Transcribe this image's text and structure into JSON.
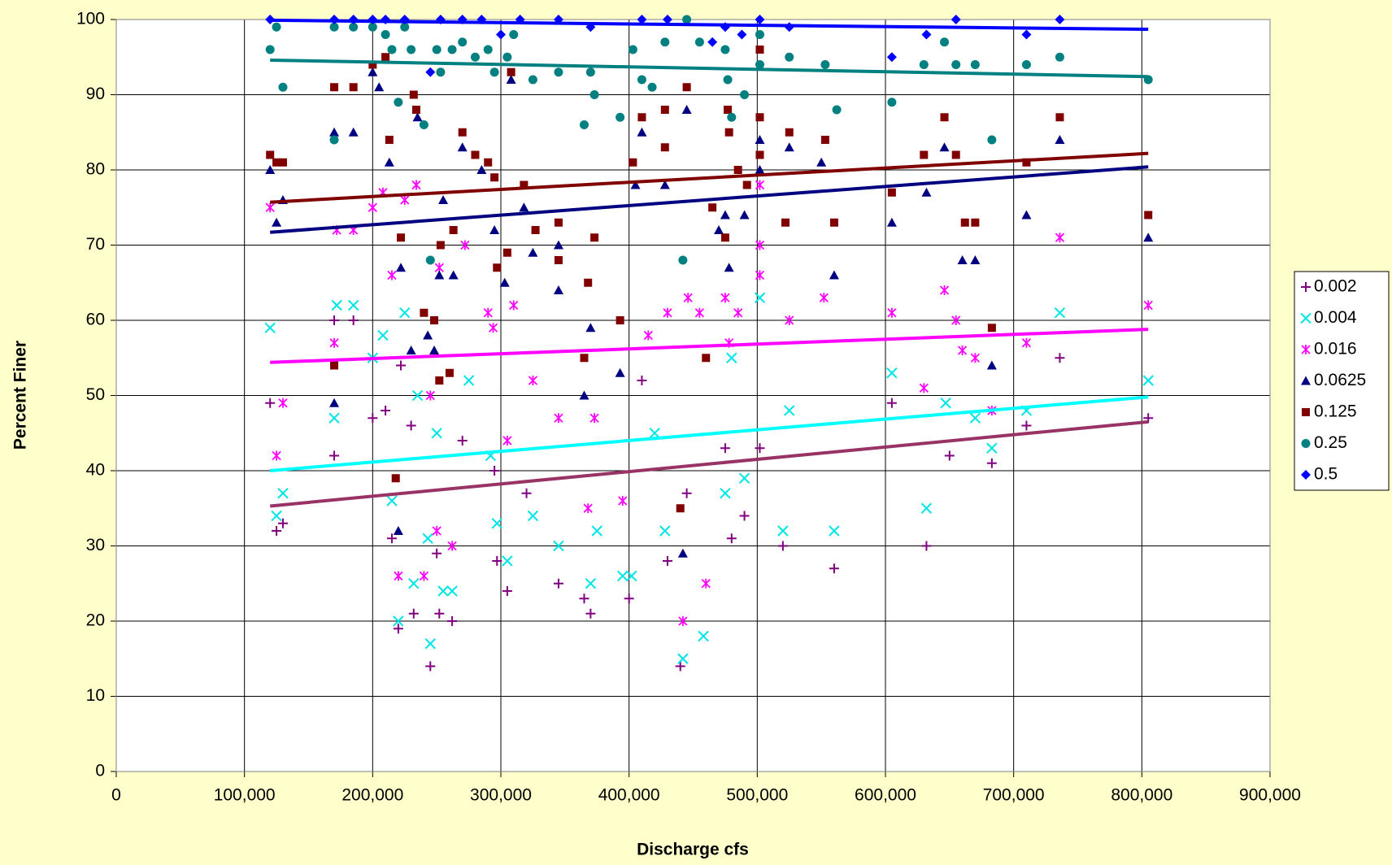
{
  "chart_data": {
    "type": "scatter",
    "y_label": "Percent Finer",
    "x_label": "Discharge  cfs",
    "xlim": [
      0,
      900000
    ],
    "ylim": [
      0,
      100
    ],
    "xticks": [
      0,
      {
        "value": 100000,
        "label": "100,000"
      },
      {
        "value": 200000,
        "label": "200,000"
      },
      {
        "value": 300000,
        "label": "300,000"
      },
      {
        "value": 400000,
        "label": "400,000"
      },
      {
        "value": 500000,
        "label": "500,000"
      },
      {
        "value": 600000,
        "label": "600,000"
      },
      {
        "value": 700000,
        "label": "700,000"
      },
      {
        "value": 800000,
        "label": "800,000"
      },
      {
        "value": 900000,
        "label": "900,000"
      }
    ],
    "yticks": [
      0,
      10,
      20,
      30,
      40,
      50,
      60,
      70,
      80,
      90,
      100
    ],
    "grid": true,
    "legend": "right",
    "trend_x": [
      120000,
      805000
    ],
    "series": [
      {
        "name": "0.002",
        "color": "#800080",
        "trend_color": "#993366",
        "marker": "plus",
        "trend": [
          35.3,
          46.5
        ],
        "x": [
          120000,
          125000,
          130000,
          170000,
          170000,
          185000,
          200000,
          210000,
          215000,
          220000,
          222000,
          230000,
          232000,
          245000,
          250000,
          252000,
          262000,
          270000,
          295000,
          297000,
          305000,
          320000,
          345000,
          365000,
          370000,
          400000,
          410000,
          430000,
          440000,
          445000,
          475000,
          480000,
          490000,
          502000,
          520000,
          560000,
          605000,
          632000,
          650000,
          683000,
          710000,
          736000,
          805000
        ],
        "values": [
          49,
          32,
          33,
          42,
          60,
          60,
          47,
          48,
          31,
          19,
          54,
          46,
          21,
          14,
          29,
          21,
          20,
          44,
          40,
          28,
          24,
          37,
          25,
          23,
          21,
          23,
          52,
          28,
          14,
          37,
          43,
          31,
          34,
          43,
          30,
          27,
          49,
          30,
          42,
          41,
          46,
          55,
          47
        ]
      },
      {
        "name": "0.004",
        "color": "#00e5e5",
        "trend_color": "#00ffff",
        "marker": "x",
        "trend": [
          40.0,
          49.8
        ],
        "x": [
          120000,
          125000,
          130000,
          170000,
          172000,
          185000,
          200000,
          208000,
          215000,
          220000,
          225000,
          232000,
          235000,
          243000,
          245000,
          250000,
          255000,
          262000,
          275000,
          292000,
          297000,
          305000,
          325000,
          345000,
          370000,
          375000,
          395000,
          402000,
          420000,
          428000,
          442000,
          458000,
          475000,
          480000,
          490000,
          502000,
          520000,
          525000,
          560000,
          605000,
          632000,
          647000,
          670000,
          683000,
          710000,
          736000,
          805000
        ],
        "values": [
          59,
          34,
          37,
          47,
          62,
          62,
          55,
          58,
          36,
          20,
          61,
          25,
          50,
          31,
          17,
          45,
          24,
          24,
          52,
          42,
          33,
          28,
          34,
          30,
          25,
          32,
          26,
          26,
          45,
          32,
          15,
          18,
          37,
          55,
          39,
          63,
          32,
          48,
          32,
          53,
          35,
          49,
          47,
          43,
          48,
          61,
          52
        ]
      },
      {
        "name": "0.016",
        "color": "#ff00ff",
        "trend_color": "#ff00ff",
        "marker": "asterisk",
        "trend": [
          54.4,
          58.8
        ],
        "x": [
          120000,
          125000,
          130000,
          170000,
          172000,
          185000,
          200000,
          208000,
          215000,
          220000,
          225000,
          234000,
          240000,
          245000,
          250000,
          252000,
          262000,
          272000,
          290000,
          294000,
          305000,
          310000,
          325000,
          345000,
          368000,
          373000,
          395000,
          415000,
          430000,
          442000,
          446000,
          455000,
          460000,
          475000,
          478000,
          485000,
          502000,
          502000,
          502000,
          525000,
          552000,
          605000,
          630000,
          646000,
          655000,
          660000,
          670000,
          683000,
          710000,
          736000,
          805000
        ],
        "values": [
          75,
          42,
          49,
          57,
          72,
          72,
          75,
          77,
          66,
          26,
          76,
          78,
          26,
          50,
          32,
          67,
          30,
          70,
          61,
          59,
          44,
          62,
          52,
          47,
          35,
          47,
          36,
          58,
          61,
          20,
          63,
          61,
          25,
          63,
          57,
          61,
          78,
          70,
          66,
          60,
          63,
          61,
          51,
          64,
          60,
          56,
          55,
          48,
          57,
          71,
          62
        ]
      },
      {
        "name": "0.0625",
        "color": "#000080",
        "trend_color": "#000080",
        "marker": "triangle",
        "trend": [
          71.7,
          80.4
        ],
        "x": [
          120000,
          125000,
          130000,
          170000,
          170000,
          185000,
          200000,
          205000,
          213000,
          220000,
          222000,
          230000,
          235000,
          243000,
          248000,
          252000,
          255000,
          263000,
          270000,
          285000,
          295000,
          303000,
          308000,
          318000,
          325000,
          345000,
          345000,
          365000,
          370000,
          393000,
          405000,
          410000,
          428000,
          442000,
          445000,
          470000,
          475000,
          478000,
          490000,
          502000,
          502000,
          525000,
          550000,
          560000,
          605000,
          632000,
          646000,
          660000,
          670000,
          683000,
          710000,
          736000,
          805000
        ],
        "values": [
          80,
          73,
          76,
          85,
          49,
          85,
          93,
          91,
          81,
          32,
          67,
          56,
          87,
          58,
          56,
          66,
          76,
          66,
          83,
          80,
          72,
          65,
          92,
          75,
          69,
          70,
          64,
          50,
          59,
          53,
          78,
          85,
          78,
          29,
          88,
          72,
          74,
          67,
          74,
          84,
          80,
          83,
          81,
          66,
          73,
          77,
          83,
          68,
          68,
          54,
          74,
          84,
          71
        ]
      },
      {
        "name": "0.125",
        "color": "#800000",
        "trend_color": "#800000",
        "marker": "square",
        "trend": [
          75.7,
          82.2
        ],
        "x": [
          120000,
          125000,
          130000,
          170000,
          170000,
          185000,
          200000,
          210000,
          213000,
          218000,
          222000,
          232000,
          234000,
          240000,
          248000,
          252000,
          253000,
          260000,
          263000,
          270000,
          280000,
          290000,
          295000,
          297000,
          305000,
          308000,
          318000,
          327000,
          345000,
          345000,
          365000,
          368000,
          373000,
          393000,
          403000,
          410000,
          428000,
          428000,
          440000,
          445000,
          460000,
          465000,
          475000,
          477000,
          478000,
          485000,
          492000,
          502000,
          502000,
          502000,
          522000,
          525000,
          553000,
          560000,
          605000,
          630000,
          646000,
          655000,
          662000,
          670000,
          683000,
          710000,
          736000,
          805000
        ],
        "values": [
          82,
          81,
          81,
          91,
          54,
          91,
          94,
          95,
          84,
          39,
          71,
          90,
          88,
          61,
          60,
          52,
          70,
          53,
          72,
          85,
          82,
          81,
          79,
          67,
          69,
          93,
          78,
          72,
          73,
          68,
          55,
          65,
          71,
          60,
          81,
          87,
          88,
          83,
          35,
          91,
          55,
          75,
          71,
          88,
          85,
          80,
          78,
          96,
          87,
          82,
          73,
          85,
          84,
          73,
          77,
          82,
          87,
          82,
          73,
          73,
          59,
          81,
          87,
          74
        ]
      },
      {
        "name": "0.25",
        "color": "#008080",
        "trend_color": "#008080",
        "marker": "circle",
        "trend": [
          94.6,
          92.4
        ],
        "x": [
          120000,
          125000,
          130000,
          170000,
          170000,
          185000,
          200000,
          210000,
          215000,
          220000,
          225000,
          230000,
          240000,
          245000,
          250000,
          253000,
          262000,
          270000,
          280000,
          290000,
          295000,
          305000,
          310000,
          325000,
          345000,
          365000,
          370000,
          373000,
          393000,
          403000,
          410000,
          418000,
          428000,
          442000,
          445000,
          455000,
          475000,
          477000,
          480000,
          490000,
          502000,
          502000,
          525000,
          553000,
          562000,
          605000,
          630000,
          646000,
          655000,
          670000,
          683000,
          710000,
          736000,
          805000
        ],
        "values": [
          96,
          99,
          91,
          84,
          99,
          99,
          99,
          98,
          96,
          89,
          99,
          96,
          86,
          68,
          96,
          93,
          96,
          97,
          95,
          96,
          93,
          95,
          98,
          92,
          93,
          86,
          93,
          90,
          87,
          96,
          92,
          91,
          97,
          68,
          100,
          97,
          96,
          92,
          87,
          90,
          98,
          94,
          95,
          94,
          88,
          89,
          94,
          97,
          94,
          94,
          84,
          94,
          95,
          92
        ]
      },
      {
        "name": "0.5",
        "color": "#0000ff",
        "trend_color": "#0000ff",
        "marker": "diamond",
        "trend": [
          99.9,
          98.7
        ],
        "x": [
          120000,
          170000,
          185000,
          200000,
          210000,
          225000,
          245000,
          253000,
          270000,
          285000,
          300000,
          315000,
          345000,
          370000,
          410000,
          430000,
          465000,
          475000,
          488000,
          502000,
          525000,
          605000,
          632000,
          655000,
          710000,
          736000
        ],
        "values": [
          100,
          100,
          100,
          100,
          100,
          100,
          93,
          100,
          100,
          100,
          98,
          100,
          100,
          99,
          100,
          100,
          97,
          99,
          98,
          100,
          99,
          95,
          98,
          100,
          98,
          100
        ]
      }
    ]
  }
}
